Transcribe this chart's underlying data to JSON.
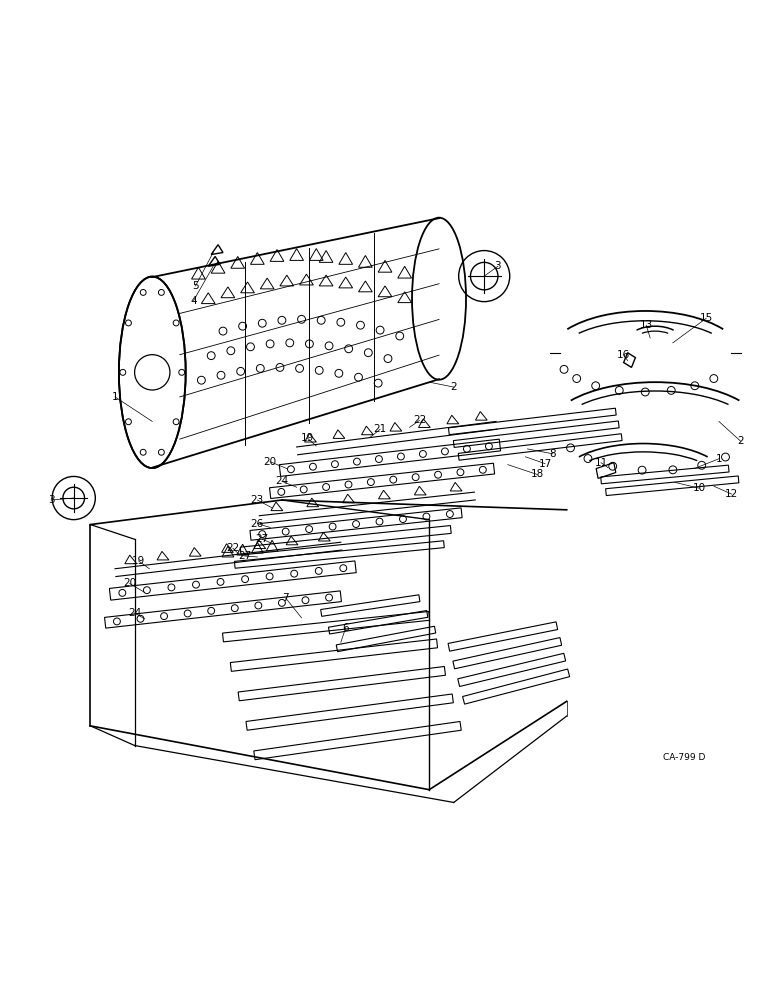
{
  "bg_color": "#ffffff",
  "line_color": "#000000",
  "fig_width": 7.72,
  "fig_height": 10.0,
  "watermark": "CA-799 D"
}
